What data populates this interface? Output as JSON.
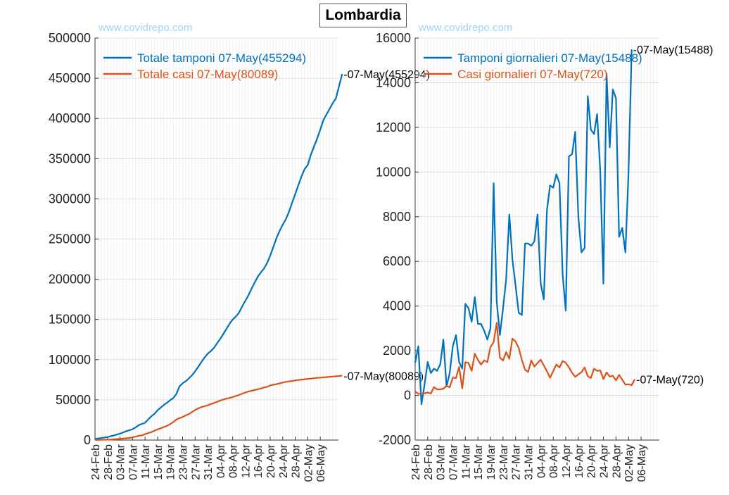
{
  "title": "Lombardia",
  "watermark": "www.covidrepo.com",
  "colors": {
    "blue": "#0072BD",
    "orange": "#D95319",
    "grid": "#d9d9d9"
  },
  "x_tick_labels": [
    "24-Feb",
    "28-Feb",
    "03-Mar",
    "07-Mar",
    "11-Mar",
    "15-Mar",
    "19-Mar",
    "23-Mar",
    "27-Mar",
    "31-Mar",
    "04-Apr",
    "08-Apr",
    "12-Apr",
    "16-Apr",
    "20-Apr",
    "24-Apr",
    "28-Apr",
    "02-May",
    "06-May"
  ],
  "chart_data": [
    {
      "type": "line",
      "x_start": "24-Feb",
      "x_end": "07-May",
      "ylim": [
        0,
        500000
      ],
      "yticks": [
        0,
        50000,
        100000,
        150000,
        200000,
        250000,
        300000,
        350000,
        400000,
        450000,
        500000
      ],
      "grid": true,
      "legend_position": "top-left",
      "series": [
        {
          "name": "Totale tamponi 07-May(455294)",
          "color": "#0072BD",
          "end_label": "07-May(455294)",
          "values": [
            1463,
            2025,
            2525,
            3208,
            3700,
            4835,
            5723,
            6879,
            7925,
            9577,
            11137,
            12138,
            13556,
            15778,
            18534,
            20135,
            21479,
            25629,
            29534,
            32700,
            37138,
            40369,
            43565,
            46449,
            49556,
            52244,
            57174,
            66730,
            70598,
            73242,
            76695,
            80479,
            85556,
            91102,
            97006,
            102503,
            107398,
            110568,
            114640,
            120310,
            125778,
            131815,
            138208,
            144560,
            149932,
            153516,
            158126,
            165947,
            172813,
            179783,
            187913,
            195674,
            202971,
            208464,
            213200,
            220028,
            229359,
            240000,
            251200,
            260000,
            268000,
            274500,
            284000,
            295000,
            306000,
            317000,
            328000,
            337000,
            342000,
            355000,
            365000,
            375000,
            386000,
            398000,
            405000,
            412000,
            419000,
            425000,
            440000,
            455294
          ]
        },
        {
          "name": "Totale casi 07-May(80089)",
          "color": "#D95319",
          "end_label": "07-May(80089)",
          "values": [
            172,
            240,
            305,
            403,
            531,
            615,
            984,
            1254,
            1520,
            1820,
            2251,
            2612,
            3420,
            4189,
            5469,
            5791,
            7280,
            8725,
            9820,
            11685,
            13272,
            14649,
            16220,
            17713,
            19884,
            22264,
            25515,
            27206,
            28761,
            30703,
            32346,
            34889,
            37298,
            39415,
            41007,
            42161,
            43208,
            44773,
            46065,
            47520,
            49118,
            50455,
            51534,
            52325,
            53414,
            54802,
            56048,
            57592,
            59052,
            60314,
            61326,
            62153,
            63094,
            64135,
            65381,
            66236,
            67931,
            68824,
            69500,
            70500,
            71500,
            72300,
            73000,
            73500,
            74200,
            74800,
            75200,
            75700,
            76000,
            76400,
            77000,
            77300,
            77600,
            78000,
            78300,
            78700,
            79000,
            79400,
            79700,
            80089
          ]
        }
      ]
    },
    {
      "type": "line",
      "x_start": "24-Feb",
      "x_end": "07-May",
      "ylim": [
        -2000,
        16000
      ],
      "yticks": [
        -2000,
        0,
        2000,
        4000,
        6000,
        8000,
        10000,
        12000,
        14000,
        16000
      ],
      "grid": true,
      "legend_position": "top-left",
      "series": [
        {
          "name": "Tamponi giornalieri 07-May(15488)",
          "color": "#0072BD",
          "end_label": "07-May(15488)",
          "values": [
            1463,
            2200,
            -400,
            500,
            1500,
            1000,
            1200,
            1100,
            1400,
            2500,
            400,
            1000,
            2200,
            2700,
            1500,
            1200,
            4100,
            3900,
            3300,
            4400,
            3200,
            3200,
            2900,
            2500,
            3000,
            9500,
            4200,
            2700,
            3900,
            5200,
            8100,
            6100,
            4900,
            3700,
            3600,
            6800,
            6800,
            6700,
            6900,
            8100,
            5000,
            4300,
            8300,
            9400,
            9300,
            9900,
            9500,
            5400,
            3800,
            10700,
            10800,
            11800,
            8000,
            6400,
            6600,
            13400,
            11900,
            11700,
            12600,
            10000,
            5000,
            14400,
            11100,
            13700,
            13300,
            7100,
            7500,
            6400,
            10000,
            15488
          ]
        },
        {
          "name": "Casi giornalieri 07-May(720)",
          "color": "#D95319",
          "end_label": "07-May(720)",
          "values": [
            172,
            70,
            65,
            100,
            130,
            85,
            370,
            270,
            270,
            300,
            430,
            360,
            800,
            770,
            1280,
            320,
            1490,
            1450,
            1100,
            1870,
            1590,
            1380,
            1570,
            1490,
            2170,
            2380,
            3250,
            1690,
            1560,
            1940,
            1640,
            2540,
            2410,
            2120,
            1590,
            1150,
            1050,
            1570,
            1290,
            1450,
            1600,
            1340,
            1080,
            790,
            1090,
            1390,
            1250,
            1540,
            1460,
            1260,
            1010,
            830,
            940,
            1040,
            1250,
            860,
            780,
            1200,
            1100,
            1120,
            730,
            1030,
            840,
            880,
            670,
            920,
            700,
            480,
            500,
            460,
            720
          ]
        }
      ]
    }
  ]
}
